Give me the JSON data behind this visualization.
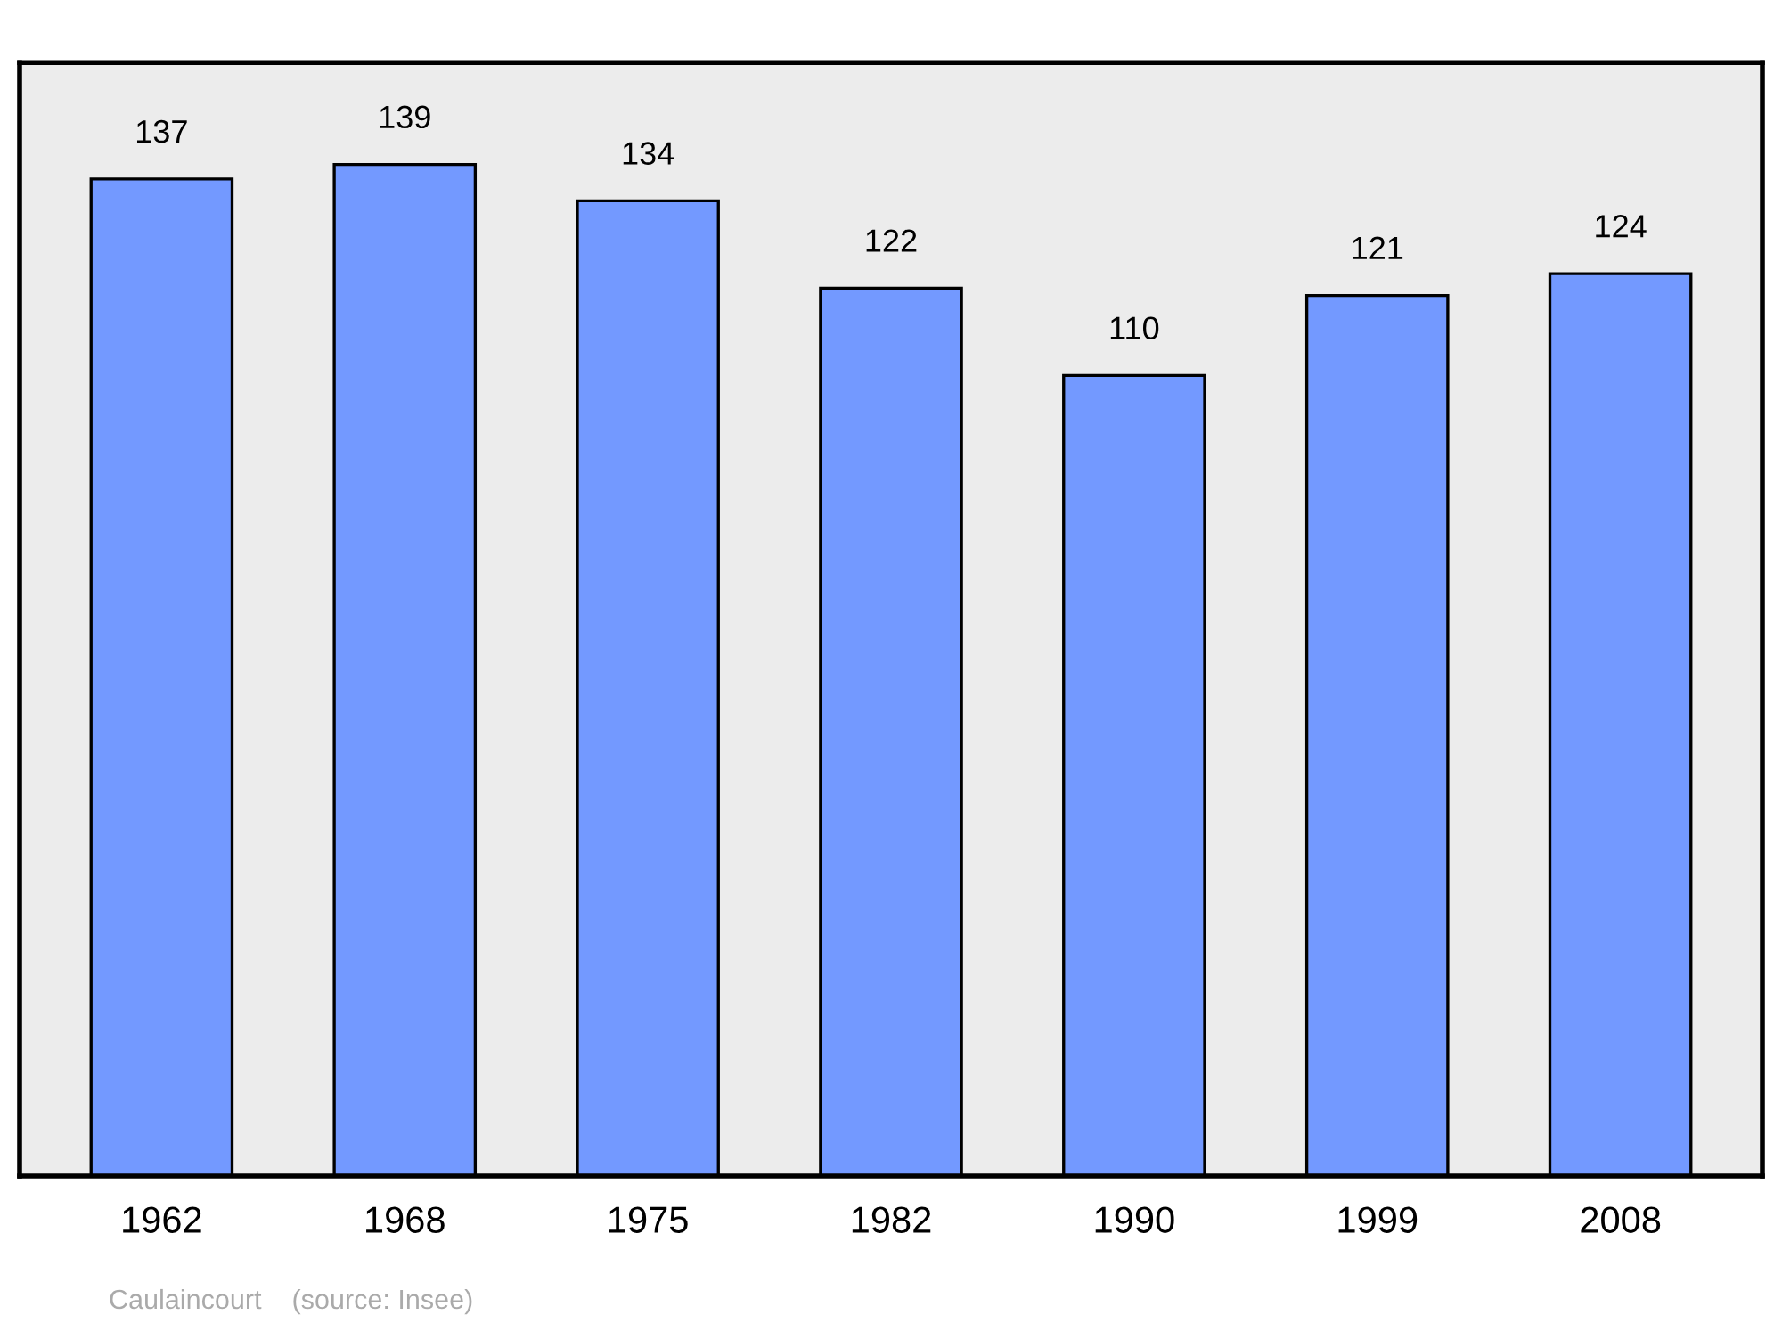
{
  "chart_data": {
    "type": "bar",
    "categories": [
      "1962",
      "1968",
      "1975",
      "1982",
      "1990",
      "1999",
      "2008"
    ],
    "values": [
      137,
      139,
      134,
      122,
      110,
      121,
      124
    ],
    "color": "#7399ff",
    "ylim": [
      0,
      153
    ],
    "data_labels": true,
    "grid": false,
    "legend": false,
    "tick_labels": "x",
    "annotations": [
      "Caulaincourt    (source: Insee)"
    ]
  }
}
